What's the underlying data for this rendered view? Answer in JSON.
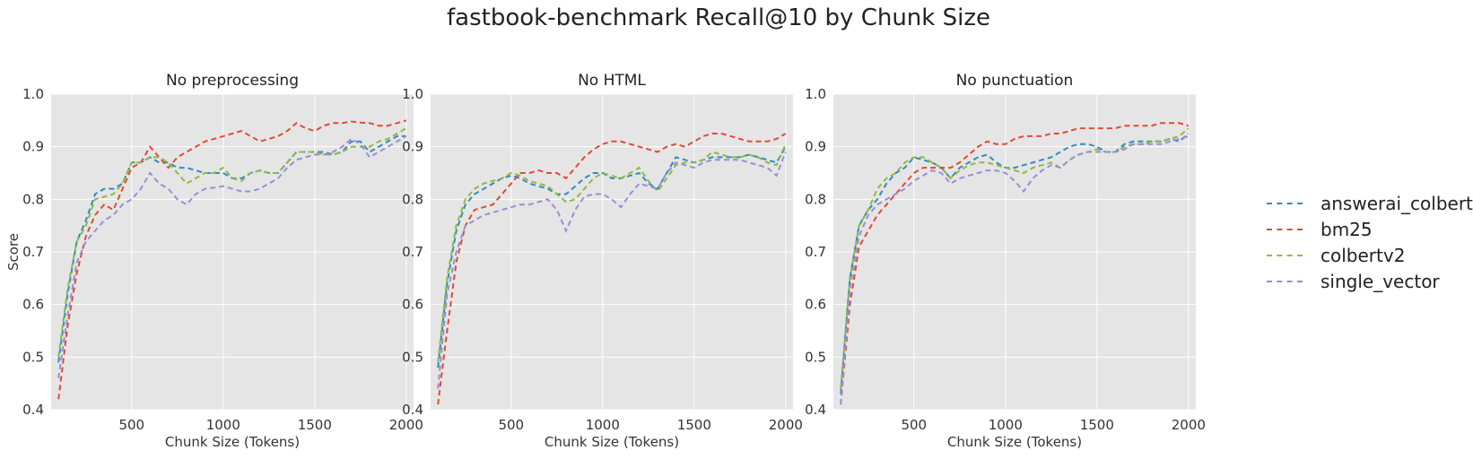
{
  "chart_data": {
    "suptitle": "fastbook-benchmark Recall@10 by Chunk Size",
    "type": "line",
    "shared": {
      "xlabel": "Chunk Size (Tokens)",
      "ylabel": "Score",
      "xlim": [
        60,
        2040
      ],
      "ylim": [
        0.4,
        1.0
      ],
      "xticks": [
        500,
        1000,
        1500,
        2000
      ],
      "yticks": [
        0.4,
        0.5,
        0.6,
        0.7,
        0.8,
        0.9,
        1.0
      ],
      "grid": true,
      "legend_position": "right",
      "x": [
        100,
        150,
        200,
        250,
        300,
        350,
        400,
        450,
        500,
        550,
        600,
        650,
        700,
        750,
        800,
        850,
        900,
        950,
        1000,
        1050,
        1100,
        1150,
        1200,
        1250,
        1300,
        1350,
        1400,
        1450,
        1500,
        1550,
        1600,
        1650,
        1700,
        1750,
        1800,
        1850,
        1900,
        1950,
        2000
      ]
    },
    "legend": [
      {
        "name": "answerai_colbert",
        "color": "#348ABD"
      },
      {
        "name": "bm25",
        "color": "#E24A33"
      },
      {
        "name": "colbertv2",
        "color": "#8EBA42"
      },
      {
        "name": "single_vector",
        "color": "#988ED5"
      }
    ],
    "panels": [
      {
        "title": "No preprocessing",
        "series": [
          {
            "name": "answerai_colbert",
            "values": [
              0.49,
              0.62,
              0.72,
              0.76,
              0.81,
              0.82,
              0.82,
              0.83,
              0.87,
              0.87,
              0.88,
              0.87,
              0.87,
              0.86,
              0.86,
              0.855,
              0.85,
              0.85,
              0.85,
              0.84,
              0.84,
              0.85,
              0.855,
              0.85,
              0.85,
              0.87,
              0.89,
              0.89,
              0.89,
              0.89,
              0.885,
              0.89,
              0.91,
              0.91,
              0.89,
              0.9,
              0.91,
              0.92,
              0.92
            ]
          },
          {
            "name": "bm25",
            "values": [
              0.42,
              0.56,
              0.66,
              0.73,
              0.77,
              0.79,
              0.78,
              0.82,
              0.86,
              0.87,
              0.9,
              0.88,
              0.86,
              0.88,
              0.89,
              0.9,
              0.91,
              0.915,
              0.92,
              0.925,
              0.93,
              0.92,
              0.91,
              0.915,
              0.92,
              0.93,
              0.945,
              0.935,
              0.93,
              0.94,
              0.945,
              0.945,
              0.948,
              0.946,
              0.945,
              0.94,
              0.94,
              0.945,
              0.95
            ]
          },
          {
            "name": "colbertv2",
            "values": [
              0.5,
              0.63,
              0.72,
              0.75,
              0.8,
              0.805,
              0.81,
              0.83,
              0.87,
              0.87,
              0.88,
              0.88,
              0.87,
              0.85,
              0.83,
              0.84,
              0.85,
              0.85,
              0.86,
              0.84,
              0.835,
              0.85,
              0.855,
              0.85,
              0.85,
              0.87,
              0.89,
              0.89,
              0.89,
              0.885,
              0.885,
              0.89,
              0.9,
              0.9,
              0.9,
              0.91,
              0.915,
              0.925,
              0.935
            ]
          },
          {
            "name": "single_vector",
            "values": [
              0.46,
              0.58,
              0.68,
              0.72,
              0.74,
              0.76,
              0.77,
              0.79,
              0.8,
              0.82,
              0.85,
              0.83,
              0.82,
              0.8,
              0.79,
              0.81,
              0.82,
              0.822,
              0.825,
              0.82,
              0.815,
              0.815,
              0.82,
              0.83,
              0.84,
              0.86,
              0.875,
              0.88,
              0.885,
              0.885,
              0.89,
              0.9,
              0.915,
              0.905,
              0.88,
              0.89,
              0.9,
              0.91,
              0.92
            ]
          }
        ]
      },
      {
        "title": "No HTML",
        "series": [
          {
            "name": "answerai_colbert",
            "values": [
              0.48,
              0.64,
              0.74,
              0.79,
              0.81,
              0.82,
              0.83,
              0.84,
              0.845,
              0.84,
              0.83,
              0.825,
              0.82,
              0.81,
              0.81,
              0.825,
              0.84,
              0.85,
              0.85,
              0.84,
              0.84,
              0.845,
              0.85,
              0.83,
              0.82,
              0.85,
              0.88,
              0.875,
              0.87,
              0.875,
              0.88,
              0.88,
              0.88,
              0.88,
              0.885,
              0.88,
              0.875,
              0.87,
              0.9
            ]
          },
          {
            "name": "bm25",
            "values": [
              0.41,
              0.55,
              0.68,
              0.75,
              0.78,
              0.785,
              0.79,
              0.81,
              0.83,
              0.85,
              0.85,
              0.855,
              0.85,
              0.85,
              0.84,
              0.86,
              0.88,
              0.895,
              0.905,
              0.91,
              0.91,
              0.905,
              0.9,
              0.895,
              0.89,
              0.9,
              0.905,
              0.9,
              0.91,
              0.92,
              0.925,
              0.925,
              0.92,
              0.915,
              0.91,
              0.91,
              0.91,
              0.915,
              0.925
            ]
          },
          {
            "name": "colbertv2",
            "values": [
              0.49,
              0.65,
              0.75,
              0.8,
              0.82,
              0.83,
              0.835,
              0.84,
              0.85,
              0.845,
              0.835,
              0.83,
              0.825,
              0.81,
              0.795,
              0.8,
              0.82,
              0.84,
              0.85,
              0.845,
              0.84,
              0.85,
              0.86,
              0.835,
              0.815,
              0.84,
              0.865,
              0.87,
              0.87,
              0.875,
              0.89,
              0.885,
              0.88,
              0.88,
              0.885,
              0.88,
              0.87,
              0.865,
              0.905
            ]
          },
          {
            "name": "single_vector",
            "values": [
              0.44,
              0.62,
              0.7,
              0.75,
              0.76,
              0.77,
              0.775,
              0.78,
              0.785,
              0.79,
              0.79,
              0.795,
              0.8,
              0.78,
              0.74,
              0.78,
              0.805,
              0.81,
              0.81,
              0.8,
              0.785,
              0.81,
              0.83,
              0.825,
              0.82,
              0.85,
              0.87,
              0.865,
              0.86,
              0.87,
              0.875,
              0.875,
              0.875,
              0.875,
              0.87,
              0.865,
              0.86,
              0.845,
              0.89
            ]
          }
        ]
      },
      {
        "title": "No punctuation",
        "series": [
          {
            "name": "answerai_colbert",
            "values": [
              0.43,
              0.65,
              0.75,
              0.78,
              0.8,
              0.83,
              0.85,
              0.86,
              0.88,
              0.875,
              0.87,
              0.86,
              0.84,
              0.86,
              0.87,
              0.88,
              0.885,
              0.87,
              0.86,
              0.86,
              0.865,
              0.87,
              0.875,
              0.88,
              0.89,
              0.9,
              0.905,
              0.905,
              0.9,
              0.89,
              0.89,
              0.905,
              0.91,
              0.91,
              0.91,
              0.91,
              0.915,
              0.91,
              0.925
            ]
          },
          {
            "name": "bm25",
            "values": [
              0.41,
              0.6,
              0.71,
              0.74,
              0.77,
              0.79,
              0.81,
              0.83,
              0.85,
              0.86,
              0.86,
              0.86,
              0.86,
              0.87,
              0.885,
              0.9,
              0.91,
              0.905,
              0.905,
              0.915,
              0.92,
              0.92,
              0.92,
              0.925,
              0.925,
              0.93,
              0.935,
              0.935,
              0.935,
              0.935,
              0.935,
              0.94,
              0.94,
              0.94,
              0.94,
              0.945,
              0.945,
              0.945,
              0.94
            ]
          },
          {
            "name": "colbertv2",
            "values": [
              0.44,
              0.65,
              0.75,
              0.78,
              0.82,
              0.84,
              0.85,
              0.87,
              0.88,
              0.88,
              0.87,
              0.86,
              0.84,
              0.855,
              0.865,
              0.87,
              0.87,
              0.865,
              0.86,
              0.855,
              0.85,
              0.86,
              0.865,
              0.87,
              0.86,
              0.875,
              0.885,
              0.89,
              0.895,
              0.89,
              0.89,
              0.9,
              0.905,
              0.905,
              0.91,
              0.91,
              0.915,
              0.92,
              0.935
            ]
          },
          {
            "name": "single_vector",
            "values": [
              0.41,
              0.63,
              0.73,
              0.77,
              0.79,
              0.8,
              0.81,
              0.82,
              0.835,
              0.845,
              0.855,
              0.85,
              0.83,
              0.84,
              0.845,
              0.85,
              0.855,
              0.855,
              0.85,
              0.835,
              0.815,
              0.84,
              0.855,
              0.865,
              0.86,
              0.875,
              0.885,
              0.89,
              0.89,
              0.89,
              0.89,
              0.895,
              0.905,
              0.905,
              0.905,
              0.905,
              0.91,
              0.915,
              0.92
            ]
          }
        ]
      }
    ]
  }
}
